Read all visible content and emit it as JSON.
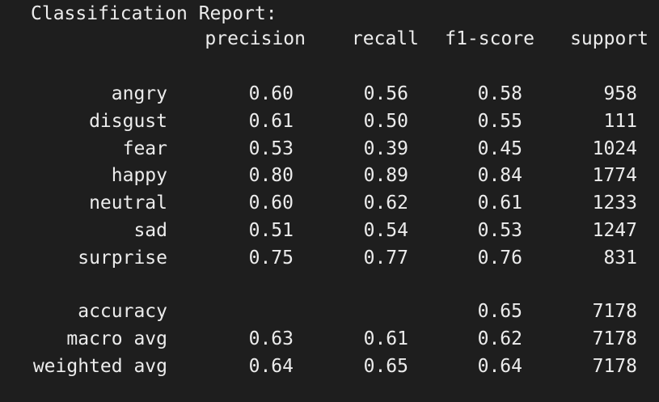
{
  "report": {
    "title": "Classification Report:",
    "headers": {
      "precision": "precision",
      "recall": "recall",
      "f1": "f1-score",
      "support": "support"
    },
    "rows": [
      {
        "label": "angry",
        "precision": "0.60",
        "recall": "0.56",
        "f1": "0.58",
        "support": "958"
      },
      {
        "label": "disgust",
        "precision": "0.61",
        "recall": "0.50",
        "f1": "0.55",
        "support": "111"
      },
      {
        "label": "fear",
        "precision": "0.53",
        "recall": "0.39",
        "f1": "0.45",
        "support": "1024"
      },
      {
        "label": "happy",
        "precision": "0.80",
        "recall": "0.89",
        "f1": "0.84",
        "support": "1774"
      },
      {
        "label": "neutral",
        "precision": "0.60",
        "recall": "0.62",
        "f1": "0.61",
        "support": "1233"
      },
      {
        "label": "sad",
        "precision": "0.51",
        "recall": "0.54",
        "f1": "0.53",
        "support": "1247"
      },
      {
        "label": "surprise",
        "precision": "0.75",
        "recall": "0.77",
        "f1": "0.76",
        "support": "831"
      }
    ],
    "summary": [
      {
        "label": "accuracy",
        "precision": "",
        "recall": "",
        "f1": "0.65",
        "support": "7178"
      },
      {
        "label": "macro avg",
        "precision": "0.63",
        "recall": "0.61",
        "f1": "0.62",
        "support": "7178"
      },
      {
        "label": "weighted avg",
        "precision": "0.64",
        "recall": "0.65",
        "f1": "0.64",
        "support": "7178"
      }
    ]
  }
}
